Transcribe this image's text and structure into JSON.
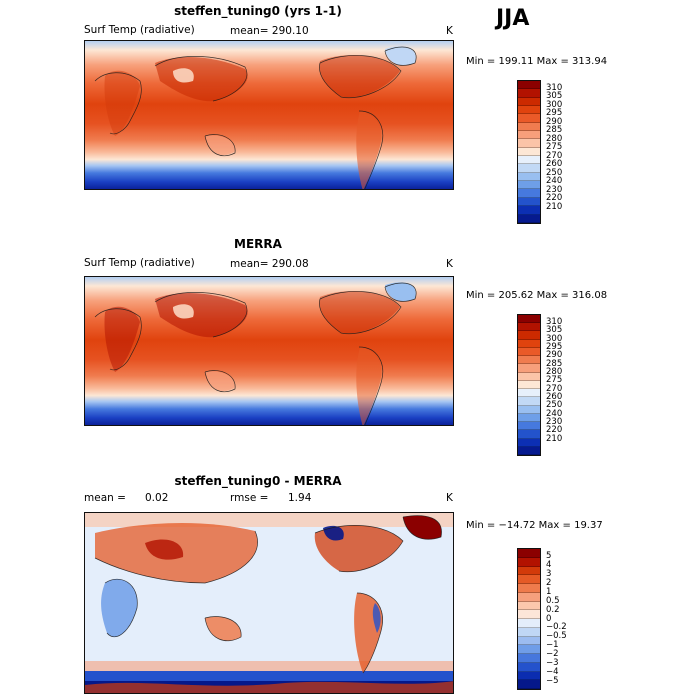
{
  "season": "JJA",
  "panels": [
    {
      "title": "steffen_tuning0 (yrs 1-1)",
      "variable": "Surf Temp (radiative)",
      "stat_text": "mean= 290.10",
      "unit": "K",
      "min_max": "Min = 199.11 Max = 313.94",
      "colorbar": {
        "colors": [
          "#8b0000",
          "#b21200",
          "#cc2a00",
          "#e0430e",
          "#ea5a28",
          "#f07c4f",
          "#f79f7b",
          "#fbc4a8",
          "#fde7d5",
          "#e7f0fb",
          "#c2d9f5",
          "#99bff0",
          "#6e9fe8",
          "#4679de",
          "#2353cc",
          "#0c2fb3",
          "#061a8f"
        ],
        "labels": [
          "310",
          "305",
          "300",
          "295",
          "290",
          "285",
          "280",
          "275",
          "270",
          "260",
          "250",
          "240",
          "230",
          "220",
          "210"
        ]
      }
    },
    {
      "title": "MERRA",
      "variable": "Surf Temp (radiative)",
      "stat_text": "mean= 290.08",
      "unit": "K",
      "min_max": "Min = 205.62 Max = 316.08",
      "colorbar": {
        "colors": [
          "#8b0000",
          "#b21200",
          "#cc2a00",
          "#e0430e",
          "#ea5a28",
          "#f07c4f",
          "#f79f7b",
          "#fbc4a8",
          "#fde7d5",
          "#e7f0fb",
          "#c2d9f5",
          "#99bff0",
          "#6e9fe8",
          "#4679de",
          "#2353cc",
          "#0c2fb3",
          "#061a8f"
        ],
        "labels": [
          "310",
          "305",
          "300",
          "295",
          "290",
          "285",
          "280",
          "275",
          "270",
          "260",
          "250",
          "240",
          "230",
          "220",
          "210"
        ]
      }
    },
    {
      "title": "steffen_tuning0 - MERRA",
      "stat_mean_label": "mean =",
      "stat_mean_value": "0.02",
      "stat_rmse_label": "rmse =",
      "stat_rmse_value": "1.94",
      "unit": "K",
      "min_max": "Min = −14.72 Max =   19.37",
      "colorbar": {
        "colors": [
          "#8b0000",
          "#b21200",
          "#d23a0a",
          "#e55a26",
          "#ef7b4c",
          "#f6a07d",
          "#fbc8ad",
          "#fde6d8",
          "#e4eefb",
          "#c0d7f5",
          "#9cbcf0",
          "#6f9de8",
          "#4677dd",
          "#2452cc",
          "#0b2db0",
          "#05188a"
        ],
        "labels": [
          "5",
          "4",
          "3",
          "2",
          "1",
          "0.5",
          "0.2",
          "0",
          "−0.2",
          "−0.5",
          "−1",
          "−2",
          "−3",
          "−4",
          "−5"
        ]
      }
    }
  ]
}
